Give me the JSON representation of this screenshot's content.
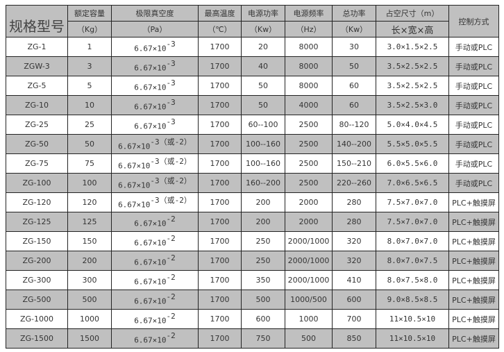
{
  "header": {
    "model": "规格型号",
    "cols": [
      {
        "name": "额定容量",
        "unit": "（Kg）"
      },
      {
        "name": "极限真空度",
        "unit": "（Pa）"
      },
      {
        "name": "最高温度",
        "unit": "（℃）"
      },
      {
        "name": "电源功率",
        "unit": "（Kw）"
      },
      {
        "name": "电源频率",
        "unit": "（Hz）"
      },
      {
        "name": "总功率",
        "unit": "（Kw）"
      },
      {
        "name": "占空尺寸（m）",
        "unit": "长×宽×高"
      }
    ],
    "control": "控制方式"
  },
  "rows": [
    {
      "model": "ZG-1",
      "cap": "1",
      "vac_base": "6.67×10",
      "vac_exp": "-3",
      "vac_note": "",
      "temp": "1700",
      "power": "20",
      "freq": "8000",
      "total": "30",
      "size": "3.0×1.5×2.5",
      "ctrl": "手动或PLC"
    },
    {
      "model": "ZGW-3",
      "cap": "3",
      "vac_base": "6.67×10",
      "vac_exp": "-3",
      "vac_note": "",
      "temp": "1700",
      "power": "40",
      "freq": "8000",
      "total": "50",
      "size": "3.5×2.5×2.5",
      "ctrl": "手动或PLC"
    },
    {
      "model": "ZG-5",
      "cap": "5",
      "vac_base": "6.67×10",
      "vac_exp": "-3",
      "vac_note": "",
      "temp": "1700",
      "power": "50",
      "freq": "8000",
      "total": "60",
      "size": "3.5×2.5×2.5",
      "ctrl": "手动或PLC"
    },
    {
      "model": "ZG-10",
      "cap": "10",
      "vac_base": "6.67×10",
      "vac_exp": "-3",
      "vac_note": "",
      "temp": "1700",
      "power": "50",
      "freq": "4000",
      "total": "60",
      "size": "3.5×2.5×3.0",
      "ctrl": "手动或PLC"
    },
    {
      "model": "ZG-25",
      "cap": "25",
      "vac_base": "6.67×10",
      "vac_exp": "-3",
      "vac_note": "",
      "temp": "1700",
      "power": "60--100",
      "freq": "2500",
      "total": "80--120",
      "size": "5.0×4.0×4.5",
      "ctrl": "手动或PLC"
    },
    {
      "model": "ZG-50",
      "cap": "50",
      "vac_base": "6.67×10",
      "vac_exp": "-3",
      "vac_note": "（或-2）",
      "temp": "1700",
      "power": "100--160",
      "freq": "2500",
      "total": "140--200",
      "size": "5.5×5.0×5.5",
      "ctrl": "手动或PLC"
    },
    {
      "model": "ZG-75",
      "cap": "75",
      "vac_base": "6.67×10",
      "vac_exp": "-3",
      "vac_note": "（或-2）",
      "temp": "1700",
      "power": "100--160",
      "freq": "2500",
      "total": "150--210",
      "size": "6.0×5.5×6.0",
      "ctrl": "手动或PLC"
    },
    {
      "model": "ZG-100",
      "cap": "100",
      "vac_base": "6.67×10",
      "vac_exp": "-3",
      "vac_note": "（或-2）",
      "temp": "1700",
      "power": "160--200",
      "freq": "2500",
      "total": "220--260",
      "size": "7.0×6.5×6.5",
      "ctrl": "手动或PLC"
    },
    {
      "model": "ZG-120",
      "cap": "120",
      "vac_base": "6.67×10",
      "vac_exp": "-3",
      "vac_note": "（或-2）",
      "temp": "1700",
      "power": "200",
      "freq": "2000",
      "total": "280",
      "size": "7.5×7.0×7.0",
      "ctrl": "PLC+触摸屏"
    },
    {
      "model": "ZG-125",
      "cap": "125",
      "vac_base": "6.67×10",
      "vac_exp": "-2",
      "vac_note": "",
      "temp": "1700",
      "power": "200",
      "freq": "2000",
      "total": "280",
      "size": "7.5×7.0×7.0",
      "ctrl": "PLC+触摸屏"
    },
    {
      "model": "ZG-150",
      "cap": "150",
      "vac_base": "6.67×10",
      "vac_exp": "-2",
      "vac_note": "",
      "temp": "1700",
      "power": "250",
      "freq": "2000/1000",
      "total": "320",
      "size": "8.0×7.0×7.0",
      "ctrl": "PLC+触摸屏"
    },
    {
      "model": "ZG-200",
      "cap": "200",
      "vac_base": "6.67×10",
      "vac_exp": "-2",
      "vac_note": "",
      "temp": "1700",
      "power": "250",
      "freq": "2000/1000",
      "total": "320",
      "size": "8.0×7.0×7.5",
      "ctrl": "PLC+触摸屏"
    },
    {
      "model": "ZG-300",
      "cap": "300",
      "vac_base": "6.67×10",
      "vac_exp": "-2",
      "vac_note": "",
      "temp": "1700",
      "power": "350",
      "freq": "2000/1000",
      "total": "410",
      "size": "8.0×7.5×8.0",
      "ctrl": "PLC+触摸屏"
    },
    {
      "model": "ZG-500",
      "cap": "500",
      "vac_base": "6.67×10",
      "vac_exp": "-2",
      "vac_note": "",
      "temp": "1700",
      "power": "500",
      "freq": "1000/500",
      "total": "600",
      "size": "9.0×8.5×8.5",
      "ctrl": "PLC+触摸屏"
    },
    {
      "model": "ZG-1000",
      "cap": "1000",
      "vac_base": "6.67×10",
      "vac_exp": "-2",
      "vac_note": "",
      "temp": "1700",
      "power": "600",
      "freq": "1000",
      "total": "700",
      "size": "11×10.5×10",
      "ctrl": "PLC+触摸屏"
    },
    {
      "model": "ZG-1500",
      "cap": "1500",
      "vac_base": "6.67×10",
      "vac_exp": "-2",
      "vac_note": "",
      "temp": "1700",
      "power": "750",
      "freq": "500",
      "total": "850",
      "size": "11×10.5×10",
      "ctrl": "PLC+触摸屏"
    }
  ]
}
